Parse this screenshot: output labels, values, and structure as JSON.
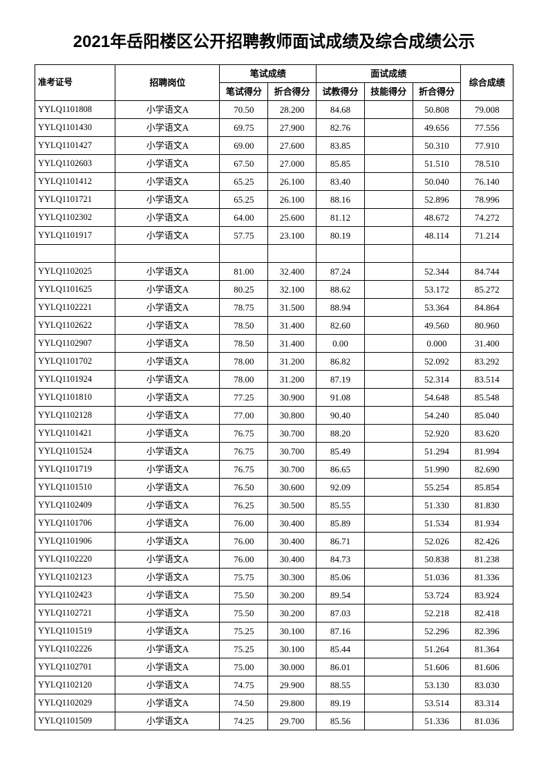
{
  "title": "2021年岳阳楼区公开招聘教师面试成绩及综合成绩公示",
  "headers": {
    "id": "准考证号",
    "position": "招聘岗位",
    "written_group": "笔试成绩",
    "written_score": "笔试得分",
    "written_conv": "折合得分",
    "interview_group": "面试成绩",
    "teach_score": "试教得分",
    "skill_score": "技能得分",
    "interview_conv": "折合得分",
    "final": "综合成绩"
  },
  "rows": [
    {
      "id": "YYLQ1101808",
      "pos": "小学语文A",
      "w": "70.50",
      "wc": "28.200",
      "t": "84.68",
      "s": "",
      "ic": "50.808",
      "f": "79.008"
    },
    {
      "id": "YYLQ1101430",
      "pos": "小学语文A",
      "w": "69.75",
      "wc": "27.900",
      "t": "82.76",
      "s": "",
      "ic": "49.656",
      "f": "77.556"
    },
    {
      "id": "YYLQ1101427",
      "pos": "小学语文A",
      "w": "69.00",
      "wc": "27.600",
      "t": "83.85",
      "s": "",
      "ic": "50.310",
      "f": "77.910"
    },
    {
      "id": "YYLQ1102603",
      "pos": "小学语文A",
      "w": "67.50",
      "wc": "27.000",
      "t": "85.85",
      "s": "",
      "ic": "51.510",
      "f": "78.510"
    },
    {
      "id": "YYLQ1101412",
      "pos": "小学语文A",
      "w": "65.25",
      "wc": "26.100",
      "t": "83.40",
      "s": "",
      "ic": "50.040",
      "f": "76.140"
    },
    {
      "id": "YYLQ1101721",
      "pos": "小学语文A",
      "w": "65.25",
      "wc": "26.100",
      "t": "88.16",
      "s": "",
      "ic": "52.896",
      "f": "78.996"
    },
    {
      "id": "YYLQ1102302",
      "pos": "小学语文A",
      "w": "64.00",
      "wc": "25.600",
      "t": "81.12",
      "s": "",
      "ic": "48.672",
      "f": "74.272"
    },
    {
      "id": "YYLQ1101917",
      "pos": "小学语文A",
      "w": "57.75",
      "wc": "23.100",
      "t": "80.19",
      "s": "",
      "ic": "48.114",
      "f": "71.214"
    },
    {
      "empty": true
    },
    {
      "id": "YYLQ1102025",
      "pos": "小学语文A",
      "w": "81.00",
      "wc": "32.400",
      "t": "87.24",
      "s": "",
      "ic": "52.344",
      "f": "84.744"
    },
    {
      "id": "YYLQ1101625",
      "pos": "小学语文A",
      "w": "80.25",
      "wc": "32.100",
      "t": "88.62",
      "s": "",
      "ic": "53.172",
      "f": "85.272"
    },
    {
      "id": "YYLQ1102221",
      "pos": "小学语文A",
      "w": "78.75",
      "wc": "31.500",
      "t": "88.94",
      "s": "",
      "ic": "53.364",
      "f": "84.864"
    },
    {
      "id": "YYLQ1102622",
      "pos": "小学语文A",
      "w": "78.50",
      "wc": "31.400",
      "t": "82.60",
      "s": "",
      "ic": "49.560",
      "f": "80.960"
    },
    {
      "id": "YYLQ1102907",
      "pos": "小学语文A",
      "w": "78.50",
      "wc": "31.400",
      "t": "0.00",
      "s": "",
      "ic": "0.000",
      "f": "31.400"
    },
    {
      "id": "YYLQ1101702",
      "pos": "小学语文A",
      "w": "78.00",
      "wc": "31.200",
      "t": "86.82",
      "s": "",
      "ic": "52.092",
      "f": "83.292"
    },
    {
      "id": "YYLQ1101924",
      "pos": "小学语文A",
      "w": "78.00",
      "wc": "31.200",
      "t": "87.19",
      "s": "",
      "ic": "52.314",
      "f": "83.514"
    },
    {
      "id": "YYLQ1101810",
      "pos": "小学语文A",
      "w": "77.25",
      "wc": "30.900",
      "t": "91.08",
      "s": "",
      "ic": "54.648",
      "f": "85.548"
    },
    {
      "id": "YYLQ1102128",
      "pos": "小学语文A",
      "w": "77.00",
      "wc": "30.800",
      "t": "90.40",
      "s": "",
      "ic": "54.240",
      "f": "85.040"
    },
    {
      "id": "YYLQ1101421",
      "pos": "小学语文A",
      "w": "76.75",
      "wc": "30.700",
      "t": "88.20",
      "s": "",
      "ic": "52.920",
      "f": "83.620"
    },
    {
      "id": "YYLQ1101524",
      "pos": "小学语文A",
      "w": "76.75",
      "wc": "30.700",
      "t": "85.49",
      "s": "",
      "ic": "51.294",
      "f": "81.994"
    },
    {
      "id": "YYLQ1101719",
      "pos": "小学语文A",
      "w": "76.75",
      "wc": "30.700",
      "t": "86.65",
      "s": "",
      "ic": "51.990",
      "f": "82.690"
    },
    {
      "id": "YYLQ1101510",
      "pos": "小学语文A",
      "w": "76.50",
      "wc": "30.600",
      "t": "92.09",
      "s": "",
      "ic": "55.254",
      "f": "85.854"
    },
    {
      "id": "YYLQ1102409",
      "pos": "小学语文A",
      "w": "76.25",
      "wc": "30.500",
      "t": "85.55",
      "s": "",
      "ic": "51.330",
      "f": "81.830"
    },
    {
      "id": "YYLQ1101706",
      "pos": "小学语文A",
      "w": "76.00",
      "wc": "30.400",
      "t": "85.89",
      "s": "",
      "ic": "51.534",
      "f": "81.934"
    },
    {
      "id": "YYLQ1101906",
      "pos": "小学语文A",
      "w": "76.00",
      "wc": "30.400",
      "t": "86.71",
      "s": "",
      "ic": "52.026",
      "f": "82.426"
    },
    {
      "id": "YYLQ1102220",
      "pos": "小学语文A",
      "w": "76.00",
      "wc": "30.400",
      "t": "84.73",
      "s": "",
      "ic": "50.838",
      "f": "81.238"
    },
    {
      "id": "YYLQ1102123",
      "pos": "小学语文A",
      "w": "75.75",
      "wc": "30.300",
      "t": "85.06",
      "s": "",
      "ic": "51.036",
      "f": "81.336"
    },
    {
      "id": "YYLQ1102423",
      "pos": "小学语文A",
      "w": "75.50",
      "wc": "30.200",
      "t": "89.54",
      "s": "",
      "ic": "53.724",
      "f": "83.924"
    },
    {
      "id": "YYLQ1102721",
      "pos": "小学语文A",
      "w": "75.50",
      "wc": "30.200",
      "t": "87.03",
      "s": "",
      "ic": "52.218",
      "f": "82.418"
    },
    {
      "id": "YYLQ1101519",
      "pos": "小学语文A",
      "w": "75.25",
      "wc": "30.100",
      "t": "87.16",
      "s": "",
      "ic": "52.296",
      "f": "82.396"
    },
    {
      "id": "YYLQ1102226",
      "pos": "小学语文A",
      "w": "75.25",
      "wc": "30.100",
      "t": "85.44",
      "s": "",
      "ic": "51.264",
      "f": "81.364"
    },
    {
      "id": "YYLQ1102701",
      "pos": "小学语文A",
      "w": "75.00",
      "wc": "30.000",
      "t": "86.01",
      "s": "",
      "ic": "51.606",
      "f": "81.606"
    },
    {
      "id": "YYLQ1102120",
      "pos": "小学语文A",
      "w": "74.75",
      "wc": "29.900",
      "t": "88.55",
      "s": "",
      "ic": "53.130",
      "f": "83.030"
    },
    {
      "id": "YYLQ1102029",
      "pos": "小学语文A",
      "w": "74.50",
      "wc": "29.800",
      "t": "89.19",
      "s": "",
      "ic": "53.514",
      "f": "83.314"
    },
    {
      "id": "YYLQ1101509",
      "pos": "小学语文A",
      "w": "74.25",
      "wc": "29.700",
      "t": "85.56",
      "s": "",
      "ic": "51.336",
      "f": "81.036"
    }
  ]
}
